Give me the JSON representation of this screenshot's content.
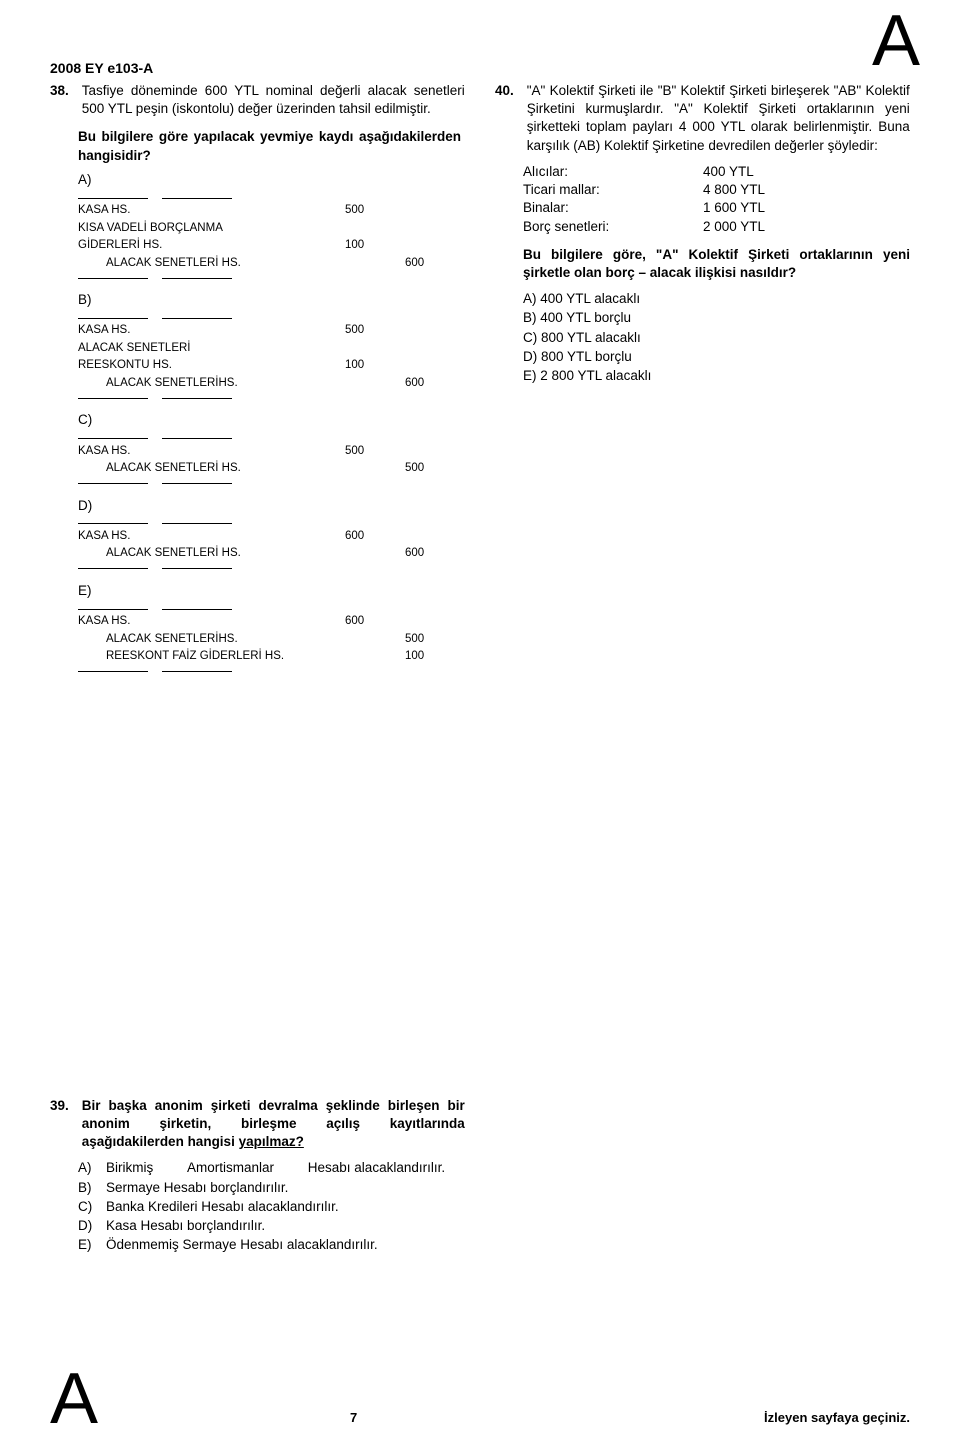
{
  "header": {
    "examCode": "2008 EY e103-A",
    "cornerLetter": "A"
  },
  "q38": {
    "num": "38.",
    "text": "Tasfiye döneminde 600 YTL nominal değerli alacak senetleri 500 YTL peşin (iskontolu) değer üzerinden tahsil edilmiştir.",
    "prompt": "Bu bilgilere göre yapılacak yevmiye kaydı aşağıdakilerden hangisidir?",
    "A": {
      "label": "A)",
      "rows": [
        {
          "name": "KASA HS.",
          "d": "500",
          "c": ""
        },
        {
          "name": "KISA VADELİ BORÇLANMA",
          "d": "",
          "c": ""
        },
        {
          "name": "GİDERLERİ HS.",
          "d": "100",
          "c": ""
        },
        {
          "name": "ALACAK SENETLERİ HS.",
          "d": "",
          "c": "600",
          "indent": "indent2"
        }
      ]
    },
    "B": {
      "label": "B)",
      "rows": [
        {
          "name": "KASA HS.",
          "d": "500",
          "c": ""
        },
        {
          "name": "ALACAK SENETLERİ",
          "d": "",
          "c": ""
        },
        {
          "name": "REESKONTU HS.",
          "d": "100",
          "c": ""
        },
        {
          "name": "ALACAK SENETLERİHS.",
          "d": "",
          "c": "600",
          "indent": "indent2"
        }
      ]
    },
    "C": {
      "label": "C)",
      "rows": [
        {
          "name": "KASA HS.",
          "d": "500",
          "c": ""
        },
        {
          "name": "ALACAK SENETLERİ HS.",
          "d": "",
          "c": "500",
          "indent": "indent2"
        }
      ]
    },
    "D": {
      "label": "D)",
      "rows": [
        {
          "name": "KASA HS.",
          "d": "600",
          "c": ""
        },
        {
          "name": "ALACAK SENETLERİ HS.",
          "d": "",
          "c": "600",
          "indent": "indent2"
        }
      ]
    },
    "E": {
      "label": "E)",
      "rows": [
        {
          "name": "KASA HS.",
          "d": "600",
          "c": ""
        },
        {
          "name": "ALACAK SENETLERİHS.",
          "d": "",
          "c": "500",
          "indent": "indent2"
        },
        {
          "name": "REESKONT FAİZ GİDERLERİ HS.",
          "d": "",
          "c": "100",
          "indent": "indent2"
        }
      ]
    }
  },
  "q40": {
    "num": "40.",
    "text": "\"A\" Kolektif Şirketi ile \"B\" Kolektif Şirketi birleşerek \"AB\" Kolektif Şirketini kurmuşlardır. \"A\" Kolektif Şirketi ortaklarının yeni şirketteki toplam payları 4 000 YTL olarak belirlenmiştir. Buna karşılık (AB) Kolektif Şirketine devredilen değerler şöyledir:",
    "table": [
      {
        "label": "Alıcılar:",
        "val": "400 YTL"
      },
      {
        "label": "Ticari mallar:",
        "val": "4 800 YTL"
      },
      {
        "label": "Binalar:",
        "val": "1 600 YTL"
      },
      {
        "label": "Borç senetleri:",
        "val": "2 000 YTL"
      }
    ],
    "prompt": "Bu bilgilere göre, \"A\" Kolektif Şirketi ortaklarının yeni şirketle olan borç – alacak ilişkisi nasıldır?",
    "answers": [
      "A)   400 YTL alacaklı",
      "B)   400 YTL  borçlu",
      "C)   800 YTL alacaklı",
      "D)   800 YTL borçlu",
      "E)   2 800 YTL alacaklı"
    ]
  },
  "q39": {
    "num": "39.",
    "text1": "Bir başka anonim şirketi devralma şeklinde birleşen bir anonim şirketin, birleşme açılış kayıtlarında aşağıdakilerden hangisi ",
    "underlined": "yapılmaz?",
    "answers": [
      {
        "l": "A)",
        "t": "Birikmiş Amortismanlar Hesabı alacaklandırılır.",
        "wide": true
      },
      {
        "l": "B)",
        "t": "Sermaye Hesabı borçlandırılır."
      },
      {
        "l": "C)",
        "t": "Banka Kredileri Hesabı alacaklandırılır."
      },
      {
        "l": "D)",
        "t": "Kasa Hesabı borçlandırılır."
      },
      {
        "l": "E)",
        "t": "Ödenmemiş Sermaye Hesabı alacaklandırılır."
      }
    ]
  },
  "footer": {
    "page": "7",
    "next": "İzleyen sayfaya geçiniz."
  }
}
